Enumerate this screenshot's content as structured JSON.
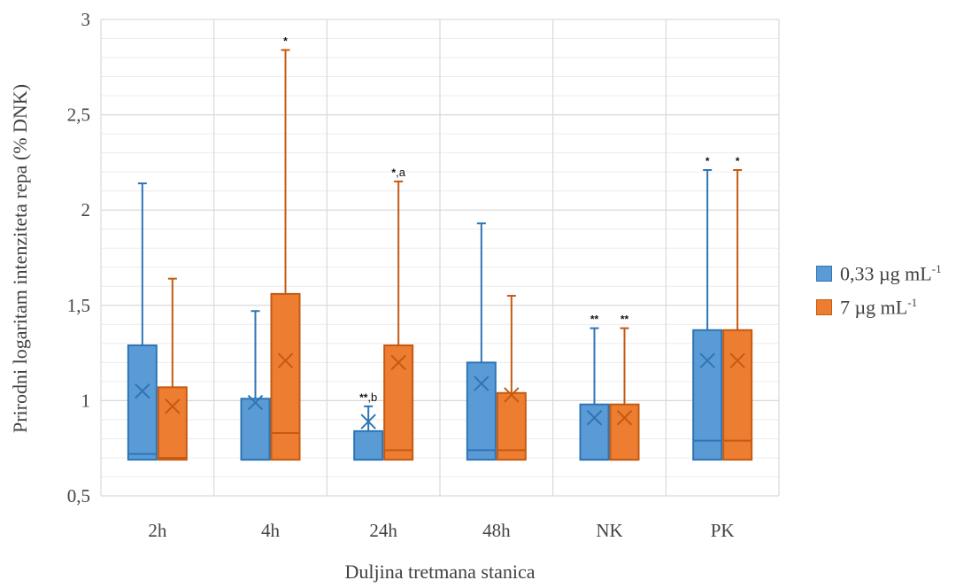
{
  "chart_data": {
    "type": "box",
    "title": "",
    "xlabel": "Duljina tretmana stanica",
    "ylabel": "Prirodni logaritam intenziteta repa (% DNK)",
    "ylim": [
      0.5,
      3
    ],
    "yticks": [
      "0,5",
      "1",
      "1,5",
      "2",
      "2,5",
      "3"
    ],
    "ytick_values": [
      0.5,
      1,
      1.5,
      2,
      2.5,
      3
    ],
    "minor_gridlines": true,
    "legend_position": "right",
    "categories": [
      "2h",
      "4h",
      "24h",
      "48h",
      "NK",
      "PK"
    ],
    "series": [
      {
        "name": "0,33 µg mL",
        "name_sup": "-1",
        "color": "#5b9bd5",
        "edge": "#2e75b6",
        "boxes": [
          {
            "min": 0.69,
            "q1": 0.69,
            "median": 0.72,
            "q3": 1.29,
            "max": 2.14,
            "mean": 1.05,
            "annotation": ""
          },
          {
            "min": 0.69,
            "q1": 0.69,
            "median": 0.69,
            "q3": 1.01,
            "max": 1.47,
            "mean": 0.99,
            "annotation": ""
          },
          {
            "min": 0.69,
            "q1": 0.69,
            "median": 0.69,
            "q3": 0.84,
            "max": 0.97,
            "mean": 0.89,
            "annotation": "**",
            "annotation_sub": ",b"
          },
          {
            "min": 0.69,
            "q1": 0.69,
            "median": 0.74,
            "q3": 1.2,
            "max": 1.93,
            "mean": 1.09,
            "annotation": ""
          },
          {
            "min": 0.69,
            "q1": 0.69,
            "median": 0.69,
            "q3": 0.98,
            "max": 1.38,
            "mean": 0.91,
            "annotation": "**",
            "annotation_sub": ""
          },
          {
            "min": 0.69,
            "q1": 0.69,
            "median": 0.79,
            "q3": 1.37,
            "max": 2.21,
            "mean": 1.21,
            "annotation": "*",
            "annotation_sub": ""
          }
        ]
      },
      {
        "name": "7 µg mL",
        "name_sup": "-1",
        "color": "#ed7d31",
        "edge": "#c55a11",
        "boxes": [
          {
            "min": 0.69,
            "q1": 0.69,
            "median": 0.7,
            "q3": 1.07,
            "max": 1.64,
            "mean": 0.97,
            "annotation": ""
          },
          {
            "min": 0.69,
            "q1": 0.69,
            "median": 0.83,
            "q3": 1.56,
            "max": 2.84,
            "mean": 1.21,
            "annotation": "*",
            "annotation_sub": ""
          },
          {
            "min": 0.69,
            "q1": 0.69,
            "median": 0.74,
            "q3": 1.29,
            "max": 2.15,
            "mean": 1.2,
            "annotation": "*",
            "annotation_sub": ",a"
          },
          {
            "min": 0.69,
            "q1": 0.69,
            "median": 0.74,
            "q3": 1.04,
            "max": 1.55,
            "mean": 1.03,
            "annotation": ""
          },
          {
            "min": 0.69,
            "q1": 0.69,
            "median": 0.69,
            "q3": 0.98,
            "max": 1.38,
            "mean": 0.91,
            "annotation": "**",
            "annotation_sub": ""
          },
          {
            "min": 0.69,
            "q1": 0.69,
            "median": 0.79,
            "q3": 1.37,
            "max": 2.21,
            "mean": 1.21,
            "annotation": "*",
            "annotation_sub": ""
          }
        ]
      }
    ]
  }
}
